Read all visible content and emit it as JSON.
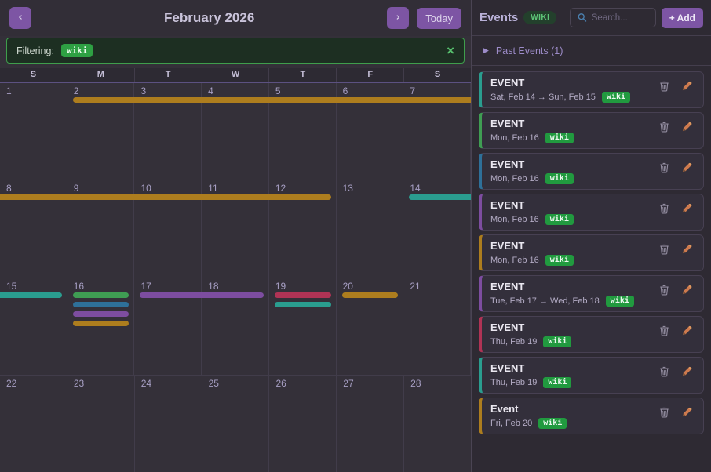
{
  "header": {
    "prev": "‹",
    "next": "›",
    "today": "Today",
    "title": "February 2026"
  },
  "filter": {
    "label": "Filtering:",
    "tag": "wiki",
    "close": "×"
  },
  "weekdays": [
    "S",
    "M",
    "T",
    "W",
    "T",
    "F",
    "S"
  ],
  "colors": {
    "gold": "#ad7d1e",
    "teal": "#2a9d8f",
    "green": "#3f9d53",
    "blue": "#2e7099",
    "purple": "#7d4da0",
    "red": "#b03355"
  },
  "calendar": {
    "weeks": [
      [
        1,
        2,
        3,
        4,
        5,
        6,
        7
      ],
      [
        8,
        9,
        10,
        11,
        12,
        13,
        14
      ],
      [
        15,
        16,
        17,
        18,
        19,
        20,
        21
      ],
      [
        22,
        23,
        24,
        25,
        26,
        27,
        28
      ]
    ],
    "bars": [
      {
        "week": 0,
        "row": 0,
        "start": 1,
        "end": 6,
        "color": "gold",
        "round_left": true,
        "round_right": false
      },
      {
        "week": 1,
        "row": 0,
        "start": 0,
        "end": 4,
        "color": "gold",
        "round_left": false,
        "round_right": true
      },
      {
        "week": 1,
        "row": 0,
        "start": 6,
        "end": 6,
        "color": "teal",
        "round_left": true,
        "round_right": false
      },
      {
        "week": 2,
        "row": 0,
        "start": 0,
        "end": 0,
        "color": "teal",
        "round_left": false,
        "round_right": true
      },
      {
        "week": 2,
        "row": 0,
        "start": 1,
        "end": 1,
        "color": "green",
        "round_left": true,
        "round_right": true
      },
      {
        "week": 2,
        "row": 1,
        "start": 1,
        "end": 1,
        "color": "blue",
        "round_left": true,
        "round_right": true
      },
      {
        "week": 2,
        "row": 2,
        "start": 1,
        "end": 1,
        "color": "purple",
        "round_left": true,
        "round_right": true
      },
      {
        "week": 2,
        "row": 3,
        "start": 1,
        "end": 1,
        "color": "gold",
        "round_left": true,
        "round_right": true
      },
      {
        "week": 2,
        "row": 0,
        "start": 2,
        "end": 3,
        "color": "purple",
        "round_left": true,
        "round_right": true
      },
      {
        "week": 2,
        "row": 0,
        "start": 4,
        "end": 4,
        "color": "red",
        "round_left": true,
        "round_right": true
      },
      {
        "week": 2,
        "row": 1,
        "start": 4,
        "end": 4,
        "color": "teal",
        "round_left": true,
        "round_right": true
      },
      {
        "week": 2,
        "row": 0,
        "start": 5,
        "end": 5,
        "color": "gold",
        "round_left": true,
        "round_right": true
      }
    ]
  },
  "panel": {
    "title": "Events",
    "badge": "WIKI",
    "search_placeholder": "Search...",
    "add_label": "+ Add",
    "past_events": {
      "arrow": "▶",
      "label": "Past Events (1)"
    },
    "events": [
      {
        "title": "EVENT",
        "date": "Sat, Feb 14 → Sun, Feb 15",
        "tag": "wiki",
        "color": "teal"
      },
      {
        "title": "EVENT",
        "date": "Mon, Feb 16",
        "tag": "wiki",
        "color": "green"
      },
      {
        "title": "EVENT",
        "date": "Mon, Feb 16",
        "tag": "wiki",
        "color": "blue"
      },
      {
        "title": "EVENT",
        "date": "Mon, Feb 16",
        "tag": "wiki",
        "color": "purple"
      },
      {
        "title": "EVENT",
        "date": "Mon, Feb 16",
        "tag": "wiki",
        "color": "gold"
      },
      {
        "title": "EVENT",
        "date": "Tue, Feb 17 → Wed, Feb 18",
        "tag": "wiki",
        "color": "purple"
      },
      {
        "title": "EVENT",
        "date": "Thu, Feb 19",
        "tag": "wiki",
        "color": "red"
      },
      {
        "title": "EVENT",
        "date": "Thu, Feb 19",
        "tag": "wiki",
        "color": "teal"
      },
      {
        "title": "Event",
        "date": "Fri, Feb 20",
        "tag": "wiki",
        "color": "gold"
      }
    ]
  }
}
